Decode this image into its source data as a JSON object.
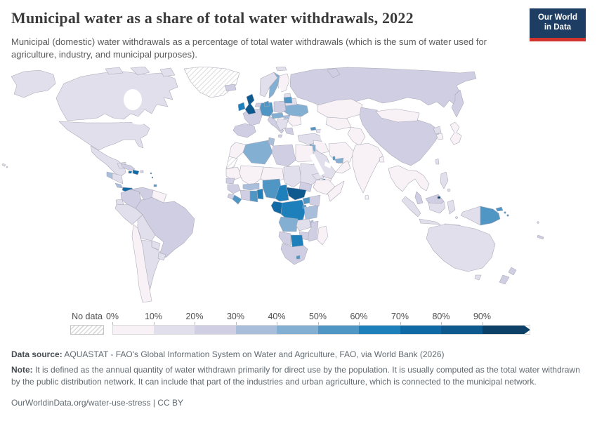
{
  "header": {
    "title": "Municipal water as a share of total water withdrawals, 2022",
    "logo_line1": "Our World",
    "logo_line2": "in Data",
    "logo_bg": "#1d3d63",
    "logo_red": "#d0342c"
  },
  "subtitle": "Municipal (domestic) water withdrawals as a percentage of total water withdrawals (which is the sum of water used for agriculture, industry, and municipal purposes).",
  "chart_data": {
    "type": "choropleth",
    "title": "Municipal water as a share of total water withdrawals, 2022",
    "unit": "%",
    "legend_position": "bottom",
    "no_data_label": "No data",
    "tick_labels": [
      "0%",
      "10%",
      "20%",
      "30%",
      "40%",
      "50%",
      "60%",
      "70%",
      "80%",
      "90%"
    ],
    "bins": [
      "0-10%",
      "10-20%",
      "20-30%",
      "30-40%",
      "40-50%",
      "50-60%",
      "60-70%",
      "70-80%",
      "80-90%",
      "90-100%"
    ],
    "bin_colors": [
      "#f8f2f7",
      "#e2dfec",
      "#cfcee3",
      "#a9bedb",
      "#83afd3",
      "#4f96c5",
      "#1e80ba",
      "#0f6aa5",
      "#0e598e",
      "#0e4168"
    ],
    "regions": {
      "usa": {
        "name": "United States",
        "bin": 1
      },
      "canada": {
        "name": "Canada",
        "bin": 1
      },
      "greenland": {
        "name": "Greenland",
        "bin": "no_data"
      },
      "mexico": {
        "name": "Mexico",
        "bin": 1
      },
      "guatemala": {
        "name": "Guatemala",
        "bin": 3
      },
      "honduras-nicaragua": {
        "name": "Honduras and Nicaragua",
        "bin": 1
      },
      "costa-rica": {
        "name": "Costa Rica",
        "bin": 3
      },
      "panama": {
        "name": "Panama",
        "bin": 7
      },
      "cuba": {
        "name": "Cuba",
        "bin": 2
      },
      "jamaica": {
        "name": "Jamaica",
        "bin": 7
      },
      "hispaniola": {
        "name": "Haiti and Dominican Republic",
        "bin": 7
      },
      "puerto-rico": {
        "name": "Puerto Rico",
        "bin": 2
      },
      "lesser-antilles": {
        "name": "Lesser Antilles",
        "bin": 7
      },
      "trinidad": {
        "name": "Trinidad and Tobago",
        "bin": 5
      },
      "colombia": {
        "name": "Colombia",
        "bin": 2
      },
      "venezuela": {
        "name": "Venezuela",
        "bin": 2
      },
      "guianas": {
        "name": "Guyana and Suriname",
        "bin": 0
      },
      "ecuador": {
        "name": "Ecuador",
        "bin": 1
      },
      "peru": {
        "name": "Peru",
        "bin": 1
      },
      "brazil": {
        "name": "Brazil",
        "bin": 2
      },
      "bolivia": {
        "name": "Bolivia",
        "bin": 1
      },
      "paraguay": {
        "name": "Paraguay",
        "bin": 1
      },
      "chile": {
        "name": "Chile",
        "bin": 0
      },
      "argentina": {
        "name": "Argentina",
        "bin": 1
      },
      "uruguay": {
        "name": "Uruguay",
        "bin": 1
      },
      "iceland": {
        "name": "Iceland",
        "bin": 2
      },
      "ireland": {
        "name": "Ireland",
        "bin": 6
      },
      "united-kingdom": {
        "name": "United Kingdom",
        "bin": 8
      },
      "norway": {
        "name": "Norway",
        "bin": 1
      },
      "sweden": {
        "name": "Sweden",
        "bin": 4
      },
      "finland": {
        "name": "Finland",
        "bin": 0
      },
      "denmark": {
        "name": "Denmark",
        "bin": 5
      },
      "estonia": {
        "name": "Estonia",
        "bin": 1
      },
      "latvia-lithuania": {
        "name": "Latvia and Lithuania",
        "bin": 5
      },
      "belarus": {
        "name": "Belarus",
        "bin": 1
      },
      "poland": {
        "name": "Poland",
        "bin": 2
      },
      "germany": {
        "name": "Germany",
        "bin": 5
      },
      "netherlands": {
        "name": "Netherlands",
        "bin": 2
      },
      "france": {
        "name": "France",
        "bin": 2
      },
      "spain-portugal": {
        "name": "Spain and Portugal",
        "bin": 2
      },
      "italy": {
        "name": "Italy",
        "bin": 2
      },
      "alpine-states": {
        "name": "Switzerland, Austria and Czechia",
        "bin": 4
      },
      "hungary": {
        "name": "Hungary",
        "bin": 3
      },
      "balkans": {
        "name": "Western Balkans",
        "bin": 1
      },
      "romania-bulgaria": {
        "name": "Romania and Bulgaria",
        "bin": 0
      },
      "greece": {
        "name": "Greece",
        "bin": 2
      },
      "ukraine": {
        "name": "Ukraine",
        "bin": 4
      },
      "turkey": {
        "name": "Turkey",
        "bin": 1
      },
      "georgia": {
        "name": "Georgia",
        "bin": 5
      },
      "azerbaijan": {
        "name": "Azerbaijan",
        "bin": 1
      },
      "russia": {
        "name": "Russia",
        "bin": 2
      },
      "kazakhstan": {
        "name": "Kazakhstan",
        "bin": 0
      },
      "central-asia": {
        "name": "Turkmenistan and Uzbekistan",
        "bin": 0
      },
      "afghanistan-pakistan": {
        "name": "Afghanistan and Pakistan",
        "bin": 0
      },
      "iran": {
        "name": "Iran",
        "bin": 0
      },
      "syria-iraq": {
        "name": "Syria and Iraq",
        "bin": 0
      },
      "jordan": {
        "name": "Jordan",
        "bin": 4
      },
      "saudi-arabia": {
        "name": "Saudi Arabia",
        "bin": 1
      },
      "yemen": {
        "name": "Yemen",
        "bin": 0
      },
      "oman": {
        "name": "Oman",
        "bin": 0
      },
      "uae": {
        "name": "United Arab Emirates",
        "bin": 4
      },
      "qatar": {
        "name": "Qatar",
        "bin": 5
      },
      "india": {
        "name": "India",
        "bin": 0
      },
      "sri-lanka": {
        "name": "Sri Lanka",
        "bin": 0
      },
      "bangladesh": {
        "name": "Bangladesh",
        "bin": 0
      },
      "myanmar-indochina": {
        "name": "Myanmar, Thailand and Indochina",
        "bin": 0
      },
      "malaysia": {
        "name": "Malaysia",
        "bin": 2
      },
      "brunei": {
        "name": "Brunei",
        "bin": 9
      },
      "china": {
        "name": "China",
        "bin": 2
      },
      "mongolia": {
        "name": "Mongolia",
        "bin": 0
      },
      "north-korea": {
        "name": "North Korea",
        "bin": 1
      },
      "south-korea": {
        "name": "South Korea",
        "bin": 0
      },
      "japan": {
        "name": "Japan",
        "bin": 0
      },
      "taiwan": {
        "name": "Taiwan",
        "bin": 1
      },
      "philippines": {
        "name": "Philippines",
        "bin": 1
      },
      "indonesia": {
        "name": "Indonesia",
        "bin": 1
      },
      "papua-new-guinea": {
        "name": "Papua New Guinea",
        "bin": 5
      },
      "solomon-islands": {
        "name": "Solomon Islands",
        "bin": 5
      },
      "australia": {
        "name": "Australia",
        "bin": 1
      },
      "new-zealand": {
        "name": "New Zealand",
        "bin": 2
      },
      "new-caledonia": {
        "name": "New Caledonia",
        "bin": 2
      },
      "fiji": {
        "name": "Fiji",
        "bin": 1
      },
      "morocco": {
        "name": "Morocco",
        "bin": 0
      },
      "western-sahara": {
        "name": "Western Sahara",
        "bin": "no_data"
      },
      "algeria": {
        "name": "Algeria",
        "bin": 4
      },
      "tunisia": {
        "name": "Tunisia",
        "bin": 3
      },
      "libya": {
        "name": "Libya",
        "bin": 2
      },
      "egypt": {
        "name": "Egypt",
        "bin": 0
      },
      "mauritania": {
        "name": "Mauritania",
        "bin": 0
      },
      "mali": {
        "name": "Mali",
        "bin": 0
      },
      "niger": {
        "name": "Niger",
        "bin": 0
      },
      "chad": {
        "name": "Chad",
        "bin": 1
      },
      "sudan": {
        "name": "Sudan",
        "bin": 1
      },
      "south-sudan": {
        "name": "South Sudan",
        "bin": 2
      },
      "eritrea": {
        "name": "Eritrea",
        "bin": 1
      },
      "djibouti": {
        "name": "Djibouti",
        "bin": 8
      },
      "ethiopia": {
        "name": "Ethiopia",
        "bin": 0
      },
      "somalia": {
        "name": "Somalia",
        "bin": 0
      },
      "senegal": {
        "name": "Senegal",
        "bin": 2
      },
      "guinea": {
        "name": "Guinea",
        "bin": 2
      },
      "sierra-leone": {
        "name": "Sierra Leone",
        "bin": 2
      },
      "liberia": {
        "name": "Liberia",
        "bin": 5
      },
      "cote-divoire": {
        "name": "Cote d'Ivoire",
        "bin": 2
      },
      "ghana": {
        "name": "Ghana",
        "bin": 5
      },
      "togo-benin": {
        "name": "Togo and Benin",
        "bin": 6
      },
      "burkina-faso": {
        "name": "Burkina Faso",
        "bin": 3
      },
      "nigeria": {
        "name": "Nigeria",
        "bin": 5
      },
      "cameroon": {
        "name": "Cameroon",
        "bin": 6
      },
      "central-african-republic": {
        "name": "Central African Republic",
        "bin": 8
      },
      "gabon-congo": {
        "name": "Gabon and Congo",
        "bin": 7
      },
      "drc": {
        "name": "Democratic Republic of Congo",
        "bin": 6
      },
      "uganda": {
        "name": "Uganda",
        "bin": 5
      },
      "kenya": {
        "name": "Kenya",
        "bin": 2
      },
      "rwanda-burundi": {
        "name": "Rwanda and Burundi",
        "bin": 5
      },
      "tanzania": {
        "name": "Tanzania",
        "bin": 3
      },
      "angola": {
        "name": "Angola",
        "bin": 4
      },
      "zambia": {
        "name": "Zambia",
        "bin": 1
      },
      "malawi": {
        "name": "Malawi",
        "bin": 3
      },
      "mozambique": {
        "name": "Mozambique",
        "bin": 2
      },
      "zimbabwe": {
        "name": "Zimbabwe",
        "bin": 2
      },
      "botswana": {
        "name": "Botswana",
        "bin": 6
      },
      "namibia": {
        "name": "Namibia",
        "bin": 2
      },
      "south-africa": {
        "name": "South Africa",
        "bin": 2
      },
      "lesotho-eswatini": {
        "name": "Lesotho and Eswatini",
        "bin": 5
      },
      "madagascar": {
        "name": "Madagascar",
        "bin": 0
      }
    }
  },
  "footer": {
    "source_label": "Data source:",
    "source_text": "AQUASTAT - FAO's Global Information System on Water and Agriculture, FAO, via World Bank (2026)",
    "note_label": "Note:",
    "note_text": "It is defined as the annual quantity of water withdrawn primarily for direct use by the population. It is usually computed as the total water withdrawn by the public distribution network. It can include that part of the industries and urban agriculture, which is connected to the municipal network.",
    "link_text": "OurWorldinData.org/water-use-stress | CC BY"
  }
}
